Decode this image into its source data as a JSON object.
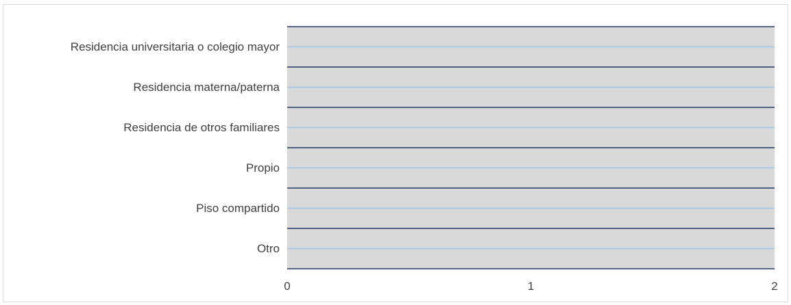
{
  "chart_data": {
    "type": "bar",
    "orientation": "horizontal",
    "categories": [
      "Residencia universitaria o colegio mayor",
      "Residencia materna/paterna",
      "Residencia de otros familiares",
      "Propio",
      "Piso compartido",
      "Otro"
    ],
    "values": [
      0,
      0,
      0,
      0,
      0,
      0
    ],
    "xlim": [
      0,
      2
    ],
    "x_ticks": [
      "0",
      "1",
      "2"
    ],
    "grid": true,
    "legend": "none",
    "colors": {
      "plot_background": "#d9d9d9",
      "category_divider": "#1f3864",
      "category_midline": "#9dc3e6",
      "frame_border": "#d9d9d9",
      "text": "#404040"
    }
  }
}
